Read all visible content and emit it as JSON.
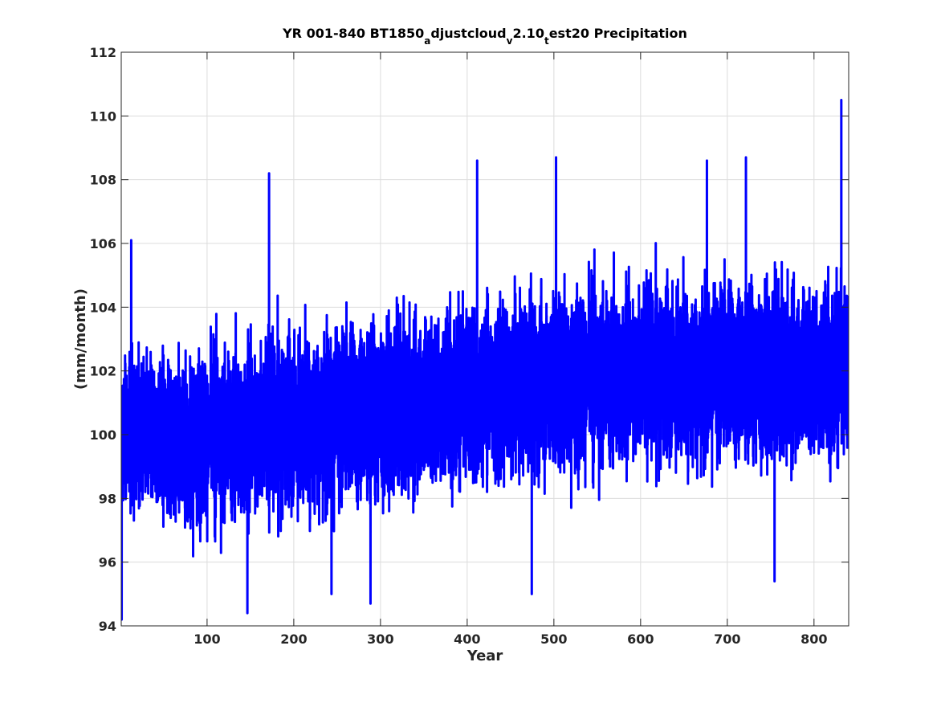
{
  "chart_data": {
    "type": "line",
    "title_parts": {
      "p1": "YR 001-840 BT1850",
      "s1": "a",
      "p2": "djustcloud",
      "s2": "v",
      "p3": "2.10",
      "s3": "t",
      "p4": "est20 Precipitation"
    },
    "xlabel": "Year",
    "ylabel": "(mm/month)",
    "xlim": [
      1,
      840
    ],
    "ylim": [
      94,
      112
    ],
    "xticks": [
      100,
      200,
      300,
      400,
      500,
      600,
      700,
      800
    ],
    "yticks": [
      94,
      96,
      98,
      100,
      102,
      104,
      106,
      108,
      110,
      112
    ],
    "grid": true,
    "series": [
      {
        "color": "#0000ff",
        "samples_per_year": 12,
        "trend": [
          {
            "year": 1,
            "mean": 100.0,
            "band": 3.2
          },
          {
            "year": 100,
            "mean": 99.9,
            "band": 3.8
          },
          {
            "year": 200,
            "mean": 100.4,
            "band": 4.0
          },
          {
            "year": 300,
            "mean": 100.8,
            "band": 4.0
          },
          {
            "year": 400,
            "mean": 101.3,
            "band": 4.0
          },
          {
            "year": 500,
            "mean": 101.7,
            "band": 4.0
          },
          {
            "year": 600,
            "mean": 101.9,
            "band": 4.0
          },
          {
            "year": 700,
            "mean": 102.0,
            "band": 4.0
          },
          {
            "year": 840,
            "mean": 102.0,
            "band": 4.0
          }
        ],
        "extremes": [
          {
            "year": 2,
            "value": 94.2
          },
          {
            "year": 13,
            "value": 106.1
          },
          {
            "year": 147,
            "value": 94.4
          },
          {
            "year": 172,
            "value": 108.2
          },
          {
            "year": 244,
            "value": 95.0
          },
          {
            "year": 289,
            "value": 94.7
          },
          {
            "year": 412,
            "value": 108.6
          },
          {
            "year": 475,
            "value": 95.0
          },
          {
            "year": 503,
            "value": 108.7
          },
          {
            "year": 677,
            "value": 108.6
          },
          {
            "year": 722,
            "value": 108.7
          },
          {
            "year": 755,
            "value": 95.4
          },
          {
            "year": 832,
            "value": 110.5
          }
        ]
      }
    ]
  }
}
